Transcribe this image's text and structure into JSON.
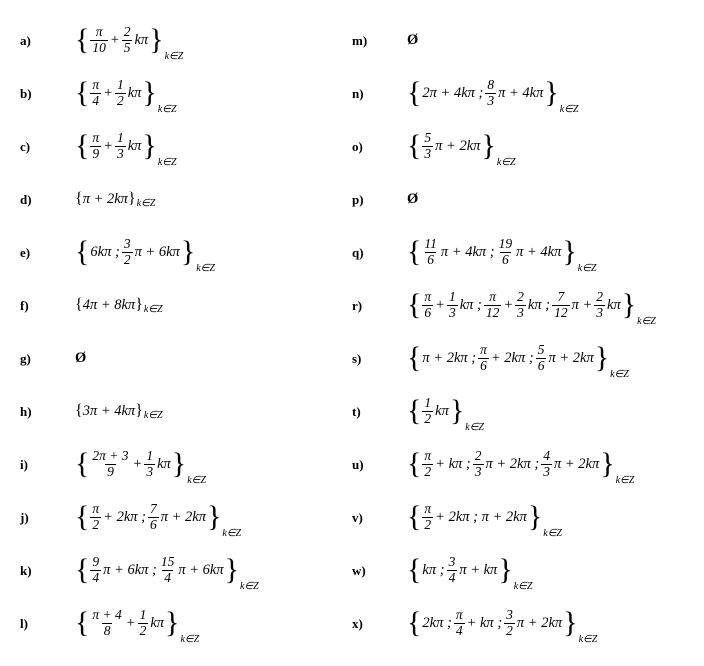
{
  "subscript": "k∈Z",
  "empty_symbol": "Ø",
  "left": [
    {
      "label": "a)",
      "type": "bigfrac",
      "parts": [
        [
          "frac",
          "π",
          "10"
        ],
        "+",
        [
          "frac",
          "2",
          "5"
        ],
        "kπ"
      ]
    },
    {
      "label": "b)",
      "type": "bigfrac",
      "parts": [
        [
          "frac",
          "π",
          "4"
        ],
        "+",
        [
          "frac",
          "1",
          "2"
        ],
        "kπ"
      ]
    },
    {
      "label": "c)",
      "type": "bigfrac",
      "parts": [
        [
          "frac",
          "π",
          "9"
        ],
        "+",
        [
          "frac",
          "1",
          "3"
        ],
        "kπ"
      ]
    },
    {
      "label": "d)",
      "type": "small",
      "text": "{π + 2kπ}"
    },
    {
      "label": "e)",
      "type": "bigfrac",
      "parts": [
        "6kπ ;",
        [
          "frac",
          "3",
          "2"
        ],
        "π + 6kπ"
      ]
    },
    {
      "label": "f)",
      "type": "small",
      "text": "{4π + 8kπ}"
    },
    {
      "label": "g)",
      "type": "empty"
    },
    {
      "label": "h)",
      "type": "small",
      "text": "{3π + 4kπ}"
    },
    {
      "label": "i)",
      "type": "bigfrac",
      "parts": [
        [
          "frac",
          "2π + 3",
          "9"
        ],
        "+",
        [
          "frac",
          "1",
          "3"
        ],
        "kπ"
      ]
    },
    {
      "label": "j)",
      "type": "bigfrac",
      "parts": [
        [
          "frac",
          "π",
          "2"
        ],
        "+ 2kπ ;",
        [
          "frac",
          "7",
          "6"
        ],
        "π + 2kπ"
      ]
    },
    {
      "label": "k)",
      "type": "bigfrac",
      "parts": [
        [
          "frac",
          "9",
          "4"
        ],
        "π + 6kπ ;",
        [
          "frac",
          "15",
          "4"
        ],
        "π + 6kπ"
      ]
    },
    {
      "label": "l)",
      "type": "bigfrac",
      "parts": [
        [
          "frac",
          "π + 4",
          "8"
        ],
        "+",
        [
          "frac",
          "1",
          "2"
        ],
        "kπ"
      ]
    }
  ],
  "right": [
    {
      "label": "m)",
      "type": "empty"
    },
    {
      "label": "n)",
      "type": "bigfrac",
      "parts": [
        "2π + 4kπ ;",
        [
          "frac",
          "8",
          "3"
        ],
        "π + 4kπ"
      ]
    },
    {
      "label": "o)",
      "type": "bigfrac",
      "parts": [
        [
          "frac",
          "5",
          "3"
        ],
        "π + 2kπ"
      ]
    },
    {
      "label": "p)",
      "type": "empty"
    },
    {
      "label": "q)",
      "type": "bigfrac",
      "parts": [
        [
          "frac",
          "11",
          "6"
        ],
        "π + 4kπ ;",
        [
          "frac",
          "19",
          "6"
        ],
        "π + 4kπ"
      ]
    },
    {
      "label": "r)",
      "type": "bigfrac",
      "parts": [
        [
          "frac",
          "π",
          "6"
        ],
        "+",
        [
          "frac",
          "1",
          "3"
        ],
        "kπ ;",
        [
          "frac",
          "π",
          "12"
        ],
        "+",
        [
          "frac",
          "2",
          "3"
        ],
        "kπ ;",
        [
          "frac",
          "7",
          "12"
        ],
        "π +",
        [
          "frac",
          "2",
          "3"
        ],
        "kπ"
      ]
    },
    {
      "label": "s)",
      "type": "bigfrac",
      "parts": [
        "π + 2kπ ;",
        [
          "frac",
          "π",
          "6"
        ],
        "+ 2kπ ;",
        [
          "frac",
          "5",
          "6"
        ],
        "π + 2kπ"
      ]
    },
    {
      "label": "t)",
      "type": "bigfrac",
      "parts": [
        [
          "frac",
          "1",
          "2"
        ],
        "kπ"
      ]
    },
    {
      "label": "u)",
      "type": "bigfrac",
      "parts": [
        [
          "frac",
          "π",
          "2"
        ],
        "+ kπ ;",
        [
          "frac",
          "2",
          "3"
        ],
        "π + 2kπ ;",
        [
          "frac",
          "4",
          "3"
        ],
        "π + 2kπ"
      ]
    },
    {
      "label": "v)",
      "type": "bigfrac",
      "parts": [
        [
          "frac",
          "π",
          "2"
        ],
        "+ 2kπ ; π + 2kπ"
      ]
    },
    {
      "label": "w)",
      "type": "bigfrac",
      "parts": [
        "kπ ;",
        [
          "frac",
          "3",
          "4"
        ],
        "π + kπ"
      ]
    },
    {
      "label": "x)",
      "type": "bigfrac",
      "parts": [
        "2kπ ;",
        [
          "frac",
          "π",
          "4"
        ],
        "+ kπ ;",
        [
          "frac",
          "3",
          "2"
        ],
        "π + 2kπ"
      ]
    }
  ]
}
